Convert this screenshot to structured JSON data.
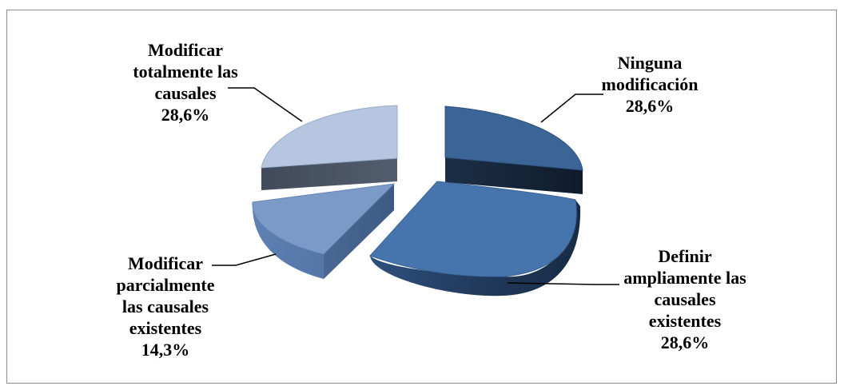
{
  "chart_data": {
    "type": "pie",
    "style": "3d-exploded",
    "slices": [
      {
        "label_lines": [
          "Ninguna",
          "modificación"
        ],
        "value": 28.6,
        "value_label": "28,6%",
        "color": "#3b6596"
      },
      {
        "label_lines": [
          "Definir",
          "ampliamente las",
          "causales",
          "existentes"
        ],
        "value": 28.6,
        "value_label": "28,6%",
        "color": "#4674ad"
      },
      {
        "label_lines": [
          "Modificar",
          "parcialmente",
          "las causales",
          "existentes"
        ],
        "value": 14.3,
        "value_label": "14,3%",
        "color": "#7b9ac8"
      },
      {
        "label_lines": [
          "Modificar",
          "totalmente las",
          "causales"
        ],
        "value": 28.6,
        "value_label": "28,6%",
        "color": "#b6c5e0"
      }
    ]
  }
}
